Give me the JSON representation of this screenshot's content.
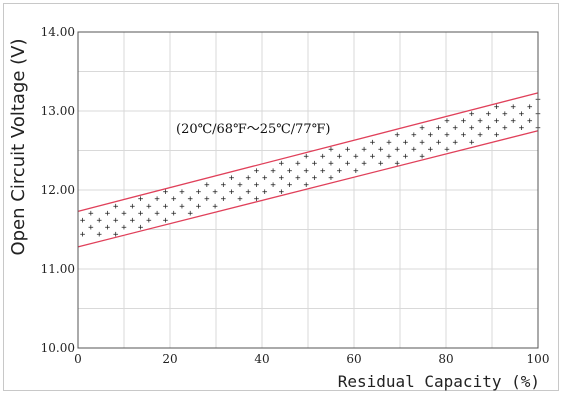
{
  "chart_data": {
    "type": "area",
    "title": "",
    "xlabel": "Residual Capacity (%)",
    "ylabel": "Open Circuit Voltage (V)",
    "xlim": [
      0,
      100
    ],
    "ylim": [
      10.0,
      14.0
    ],
    "xticks": [
      "0",
      "20",
      "40",
      "60",
      "80",
      "100"
    ],
    "yticks": [
      "10.00",
      "11.00",
      "12.00",
      "13.00",
      "14.00"
    ],
    "grid": true,
    "annotation": "(20℃/68℉～25℃/77℉)",
    "band": {
      "upper": {
        "x": [
          0,
          100
        ],
        "y": [
          11.73,
          13.23
        ]
      },
      "lower": {
        "x": [
          0,
          100
        ],
        "y": [
          11.28,
          12.75
        ]
      }
    },
    "colors": {
      "band_line": "#e0405a",
      "grid": "#d9d9d9",
      "axis": "#555555",
      "marker": "#222222"
    }
  }
}
